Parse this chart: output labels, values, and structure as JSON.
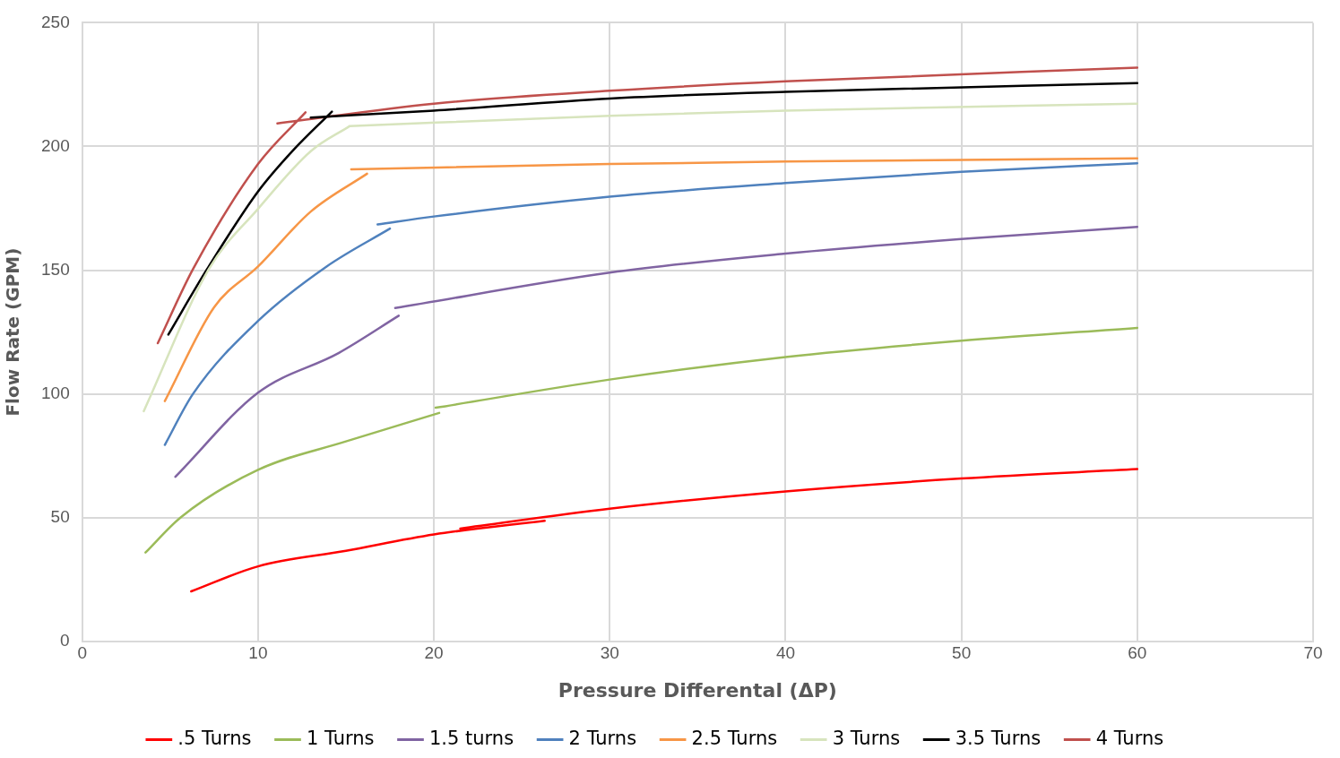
{
  "chart_data": {
    "type": "line",
    "xlabel": "Pressure Differental (ΔP)",
    "ylabel": "Flow Rate (GPM)",
    "xlim": [
      0,
      70
    ],
    "xticks": [
      0,
      10,
      20,
      30,
      40,
      50,
      60,
      70
    ],
    "ylim": [
      0,
      250
    ],
    "yticks": [
      0,
      50,
      100,
      150,
      200,
      250
    ],
    "grid": true,
    "legend": "bottom",
    "marker": "none",
    "line_style": "solid",
    "series": [
      {
        "name": ".5 Turns",
        "color": "#ff0000",
        "x": [
          6.2,
          10,
          15,
          20,
          26.3,
          null,
          21.5,
          30,
          40,
          50,
          60
        ],
        "values": [
          20.2,
          30.3,
          36.6,
          43.2,
          48.7,
          null,
          45.6,
          53.6,
          60.6,
          65.8,
          69.6
        ]
      },
      {
        "name": "1 Turns",
        "color": "#9bbb59",
        "x": [
          3.6,
          5.6,
          10,
          15,
          20.3,
          null,
          20.1,
          30,
          40,
          50,
          60
        ],
        "values": [
          35.9,
          50.1,
          69.3,
          80.8,
          92.3,
          null,
          94.4,
          105.8,
          114.9,
          121.5,
          126.7
        ]
      },
      {
        "name": "1.5 turns",
        "color": "#8064a2",
        "x": [
          5.3,
          10,
          14.6,
          18,
          null,
          17.8,
          30,
          40,
          50,
          60
        ],
        "values": [
          66.5,
          100.5,
          116.6,
          131.6,
          null,
          134.7,
          149,
          156.7,
          162.6,
          167.5
        ]
      },
      {
        "name": "2 Turns",
        "color": "#4f81bd",
        "x": [
          4.7,
          6.3,
          10,
          13.9,
          17.5,
          null,
          16.8,
          20,
          30,
          40,
          50,
          60
        ],
        "values": [
          79.4,
          100,
          129.5,
          151.5,
          166.8,
          null,
          168.5,
          171.7,
          179.7,
          185.2,
          189.8,
          193.2
        ]
      },
      {
        "name": "2.5 Turns",
        "color": "#f79646",
        "x": [
          4.7,
          7.5,
          10,
          13,
          16.2,
          null,
          15.3,
          30,
          40,
          60
        ],
        "values": [
          97.1,
          135,
          151.5,
          173.7,
          189,
          null,
          190.8,
          192.9,
          193.9,
          195.2
        ]
      },
      {
        "name": "3 Turns",
        "color": "#d7e4bd",
        "x": [
          3.5,
          7.2,
          10,
          13,
          15.2,
          null,
          15.2,
          30,
          40,
          60
        ],
        "values": [
          93,
          150.4,
          174.8,
          198.1,
          208.2,
          null,
          208.2,
          212.4,
          214.5,
          217.3
        ]
      },
      {
        "name": "3.5 Turns",
        "color": "#000000",
        "x": [
          4.9,
          7.1,
          10,
          12,
          14.2,
          null,
          13,
          20,
          30,
          40,
          60
        ],
        "values": [
          124,
          150.4,
          181.8,
          198.5,
          214.1,
          null,
          211.7,
          214.5,
          219.4,
          222.1,
          225.6
        ]
      },
      {
        "name": "4 Turns",
        "color": "#c0504d",
        "x": [
          4.3,
          6.3,
          10,
          12.7,
          null,
          11.1,
          20,
          30,
          40,
          60
        ],
        "values": [
          120.5,
          150.4,
          192.9,
          213.8,
          null,
          209.3,
          217.3,
          222.5,
          226.3,
          231.9
        ]
      }
    ]
  }
}
